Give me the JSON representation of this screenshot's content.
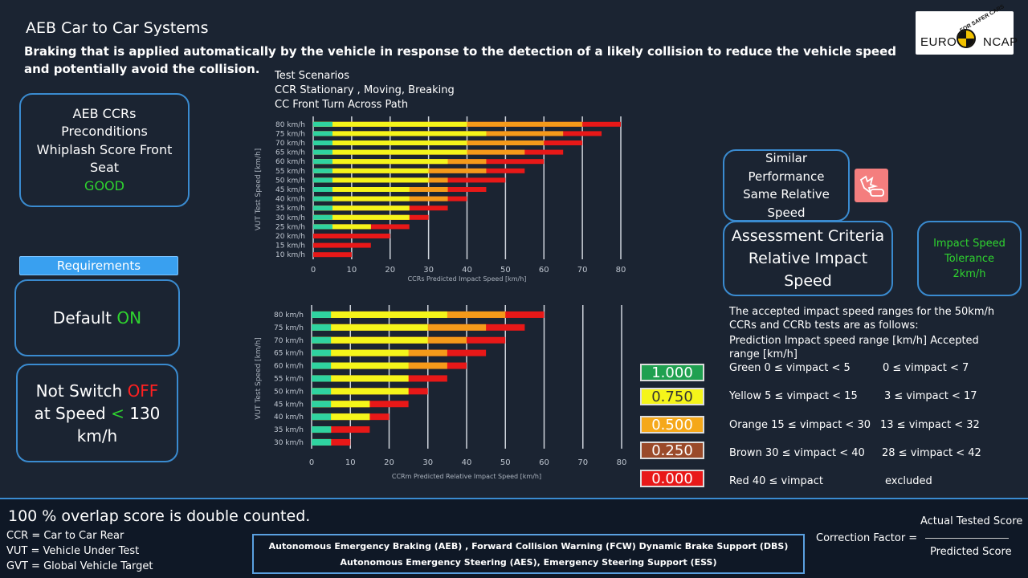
{
  "header": {
    "title": "AEB Car to Car Systems",
    "subtitle": "Braking that is applied automatically by the vehicle in response to the detection of a likely collision to reduce the vehicle speed and potentially avoid the collision.",
    "logo_text": "EURO NCAP",
    "logo_slogan": "FOR SAFER CARS"
  },
  "aeb_box": {
    "line1": "AEB CCRs",
    "line2": "Preconditions",
    "line3": "Whiplash Score Front",
    "line4": "Seat",
    "status": "GOOD"
  },
  "requirements": {
    "label": "Requirements",
    "default_prefix": "Default ",
    "default_value": "ON",
    "noswitch_prefix": "Not Switch ",
    "noswitch_value": "OFF",
    "speed_prefix": "at Speed ",
    "speed_symbol": "<",
    "speed_value": " 130",
    "speed_unit": "km/h"
  },
  "scenarios": {
    "line1": "Test Scenarios",
    "line2": "CCR Stationary , Moving, Breaking",
    "line3": "CC Front Turn Across Path"
  },
  "similar_box": {
    "line1": "Similar",
    "line2": "Performance",
    "line3": "Same Relative",
    "line4": "Speed"
  },
  "assessment_box": {
    "line1": "Assessment Criteria",
    "line2": "Relative Impact",
    "line3": "Speed"
  },
  "tolerance_box": {
    "line1": "Impact Speed",
    "line2": "Tolerance",
    "line3": "2km/h"
  },
  "colors": {
    "green": "#2fd3a0",
    "yellow": "#f5f51a",
    "orange": "#f59a1a",
    "red": "#e81818",
    "accent": "#3a8bd0"
  },
  "chart_data": [
    {
      "type": "bar",
      "xlabel": "CCRs Predicted Impact Speed [km/h]",
      "ylabel": "VUT Test Speed [km/h]",
      "xlim": [
        0,
        80
      ],
      "xticks": [
        "0",
        "10",
        "20",
        "30",
        "40",
        "50",
        "60",
        "70",
        "80"
      ],
      "categories": [
        "80 km/h",
        "75 km/h",
        "70 km/h",
        "65 km/h",
        "60 km/h",
        "55 km/h",
        "50 km/h",
        "45 km/h",
        "40 km/h",
        "35 km/h",
        "30 km/h",
        "25 km/h",
        "20 km/h",
        "15 km/h",
        "10 km/h"
      ],
      "series": [
        {
          "name": "Green",
          "values": [
            5,
            5,
            5,
            5,
            5,
            5,
            5,
            5,
            5,
            5,
            5,
            5,
            0,
            0,
            0
          ]
        },
        {
          "name": "Yellow",
          "values": [
            40,
            45,
            40,
            40,
            35,
            30,
            30,
            25,
            25,
            25,
            25,
            15,
            0,
            0,
            0
          ]
        },
        {
          "name": "Orange",
          "values": [
            70,
            65,
            60,
            55,
            45,
            45,
            35,
            35,
            35,
            25,
            25,
            15,
            0,
            0,
            0
          ]
        },
        {
          "name": "Red",
          "values": [
            80,
            75,
            70,
            65,
            60,
            55,
            50,
            45,
            40,
            35,
            30,
            25,
            20,
            15,
            10
          ]
        }
      ]
    },
    {
      "type": "bar",
      "xlabel": "CCRm Predicted Relative Impact Speed [km/h]",
      "ylabel": "VUT Test Speed [km/h]",
      "xlim": [
        0,
        80
      ],
      "xticks": [
        "0",
        "10",
        "20",
        "30",
        "40",
        "50",
        "60",
        "70",
        "80"
      ],
      "categories": [
        "80 km/h",
        "75 km/h",
        "70 km/h",
        "65 km/h",
        "60 km/h",
        "55 km/h",
        "50 km/h",
        "45 km/h",
        "40 km/h",
        "35 km/h",
        "30 km/h"
      ],
      "series": [
        {
          "name": "Green",
          "values": [
            5,
            5,
            5,
            5,
            5,
            5,
            5,
            5,
            5,
            5,
            5
          ]
        },
        {
          "name": "Yellow",
          "values": [
            35,
            30,
            30,
            25,
            25,
            25,
            25,
            15,
            15,
            5,
            5
          ]
        },
        {
          "name": "Orange",
          "values": [
            50,
            45,
            40,
            35,
            35,
            25,
            25,
            15,
            15,
            5,
            5
          ]
        },
        {
          "name": "Red",
          "values": [
            60,
            55,
            50,
            45,
            40,
            35,
            30,
            25,
            20,
            15,
            10
          ]
        }
      ]
    }
  ],
  "legend": [
    {
      "label": "1.000",
      "bg": "#1fa050",
      "fg": "#ffffff"
    },
    {
      "label": "0.750",
      "bg": "#f5f51a",
      "fg": "#333333"
    },
    {
      "label": "0.500",
      "bg": "#f5a81a",
      "fg": "#ffffff"
    },
    {
      "label": "0.250",
      "bg": "#9a4a2a",
      "fg": "#ffffff"
    },
    {
      "label": "0.000",
      "bg": "#e81818",
      "fg": "#ffffff"
    }
  ],
  "criteria": {
    "intro": "The accepted impact speed ranges for the 50km/h CCRs and CCRb tests are as follows:",
    "header": "Prediction Impact speed range [km/h] Accepted range [km/h]",
    "rows": [
      {
        "prediction": "Green 0 ≤ vimpact < 5",
        "accepted": "0 ≤ vimpact < 7"
      },
      {
        "prediction": "Yellow 5 ≤ vimpact < 15",
        "accepted": "3 ≤ vimpact < 17"
      },
      {
        "prediction": "Orange 15 ≤ vimpact < 30",
        "accepted": "13 ≤ vimpact < 32"
      },
      {
        "prediction": "Brown 30 ≤ vimpact < 40",
        "accepted": "28 ≤ vimpact < 42"
      },
      {
        "prediction": "Red 40 ≤ vimpact",
        "accepted": "excluded"
      }
    ]
  },
  "footer": {
    "overlap": "100 % overlap score is double counted.",
    "ccr": "CCR = Car to Car Rear",
    "vut": "VUT = Vehicle Under Test",
    "gvt": "GVT = Global Vehicle Target",
    "systems_line1": "Autonomous Emergency Braking (AEB) , Forward Collision Warning (FCW) Dynamic Brake Support (DBS)",
    "systems_line2": "Autonomous Emergency Steering (AES), Emergency Steering Support (ESS)",
    "correction_label": "Correction Factor =",
    "numerator": "Actual Tested Score",
    "denominator": "Predicted Score"
  }
}
